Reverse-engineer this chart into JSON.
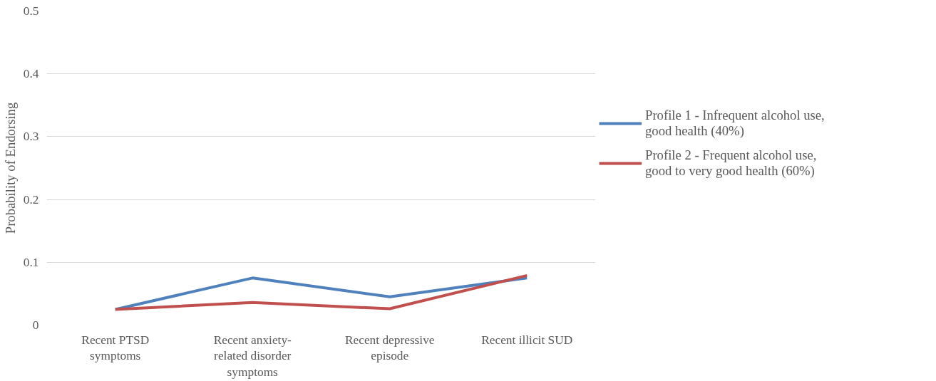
{
  "chart_data": {
    "type": "line",
    "ylabel": "Probability of Endorsing",
    "categories": [
      "Recent PTSD symptoms",
      "Recent anxiety-related disorder symptoms",
      "Recent depressive episode",
      "Recent illicit SUD"
    ],
    "series": [
      {
        "name": "Profile 1 - Infrequent alcohol use, good health (40%)",
        "color": "#4f81bd",
        "values": [
          0.025,
          0.075,
          0.045,
          0.075
        ]
      },
      {
        "name": "Profile 2 - Frequent alcohol use, good to very good health (60%)",
        "color": "#c0504d",
        "values": [
          0.025,
          0.036,
          0.026,
          0.079
        ]
      }
    ],
    "ylim": [
      0,
      0.5
    ],
    "yticks": [
      0,
      0.1,
      0.2,
      0.3,
      0.4,
      0.5
    ],
    "grid": "y",
    "legend": "right",
    "marker": "none",
    "line_style": "solid"
  }
}
